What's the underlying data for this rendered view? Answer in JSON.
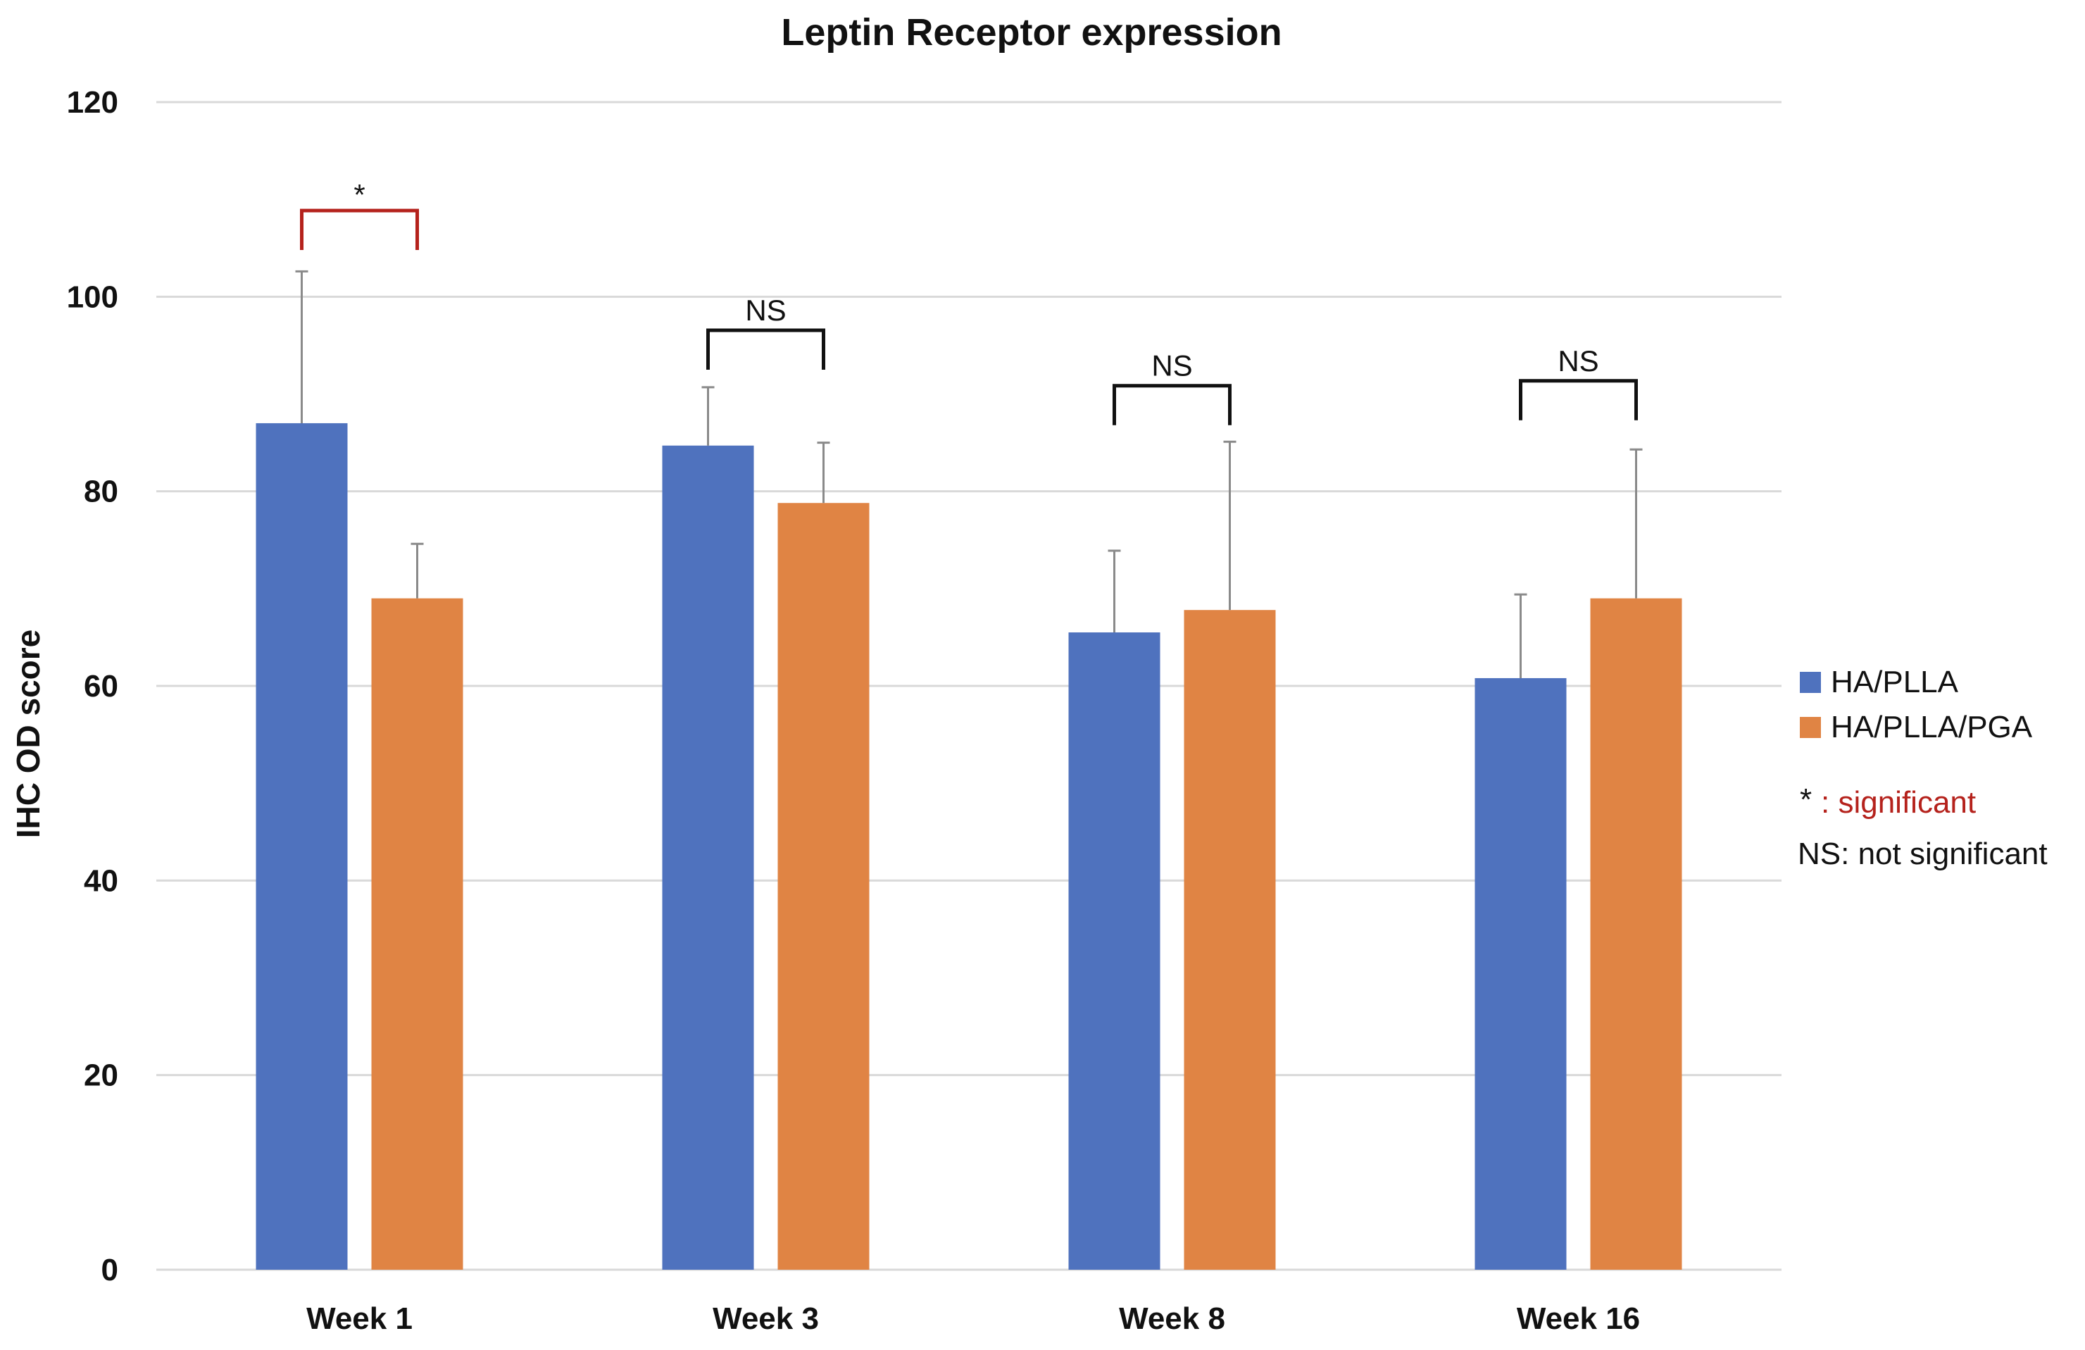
{
  "chart_data": {
    "type": "bar",
    "title": "Leptin Receptor expression",
    "xlabel": "",
    "ylabel": "IHC OD score",
    "ylim": [
      0,
      120
    ],
    "yticks": [
      0,
      20,
      40,
      60,
      80,
      100,
      120
    ],
    "grid": true,
    "legend_position": "right",
    "categories": [
      "Week 1",
      "Week 3",
      "Week 8",
      "Week 16"
    ],
    "series": [
      {
        "name": "HA/PLLA",
        "color": "#4f72be",
        "values": [
          87,
          84.7,
          65.5,
          60.8
        ],
        "error": [
          15.6,
          6,
          8.4,
          8.6
        ]
      },
      {
        "name": "HA/PLLA/PGA",
        "color": "#e08444",
        "values": [
          69,
          78.8,
          67.8,
          69
        ],
        "error": [
          5.6,
          6.2,
          17.3,
          15.3
        ]
      }
    ],
    "annotations": [
      {
        "category": "Week 1",
        "label": "*",
        "type": "significant",
        "color": "#b5221c"
      },
      {
        "category": "Week 3",
        "label": "NS",
        "type": "not-significant",
        "color": "#111111"
      },
      {
        "category": "Week 8",
        "label": "NS",
        "type": "not-significant",
        "color": "#111111"
      },
      {
        "category": "Week 16",
        "label": "NS",
        "type": "not-significant",
        "color": "#111111"
      }
    ],
    "legend_notes": [
      {
        "symbol": "*",
        "text": ": significant",
        "color": "#b5221c"
      },
      {
        "symbol": "",
        "text": "NS: not significant",
        "color": "#111111"
      }
    ]
  }
}
